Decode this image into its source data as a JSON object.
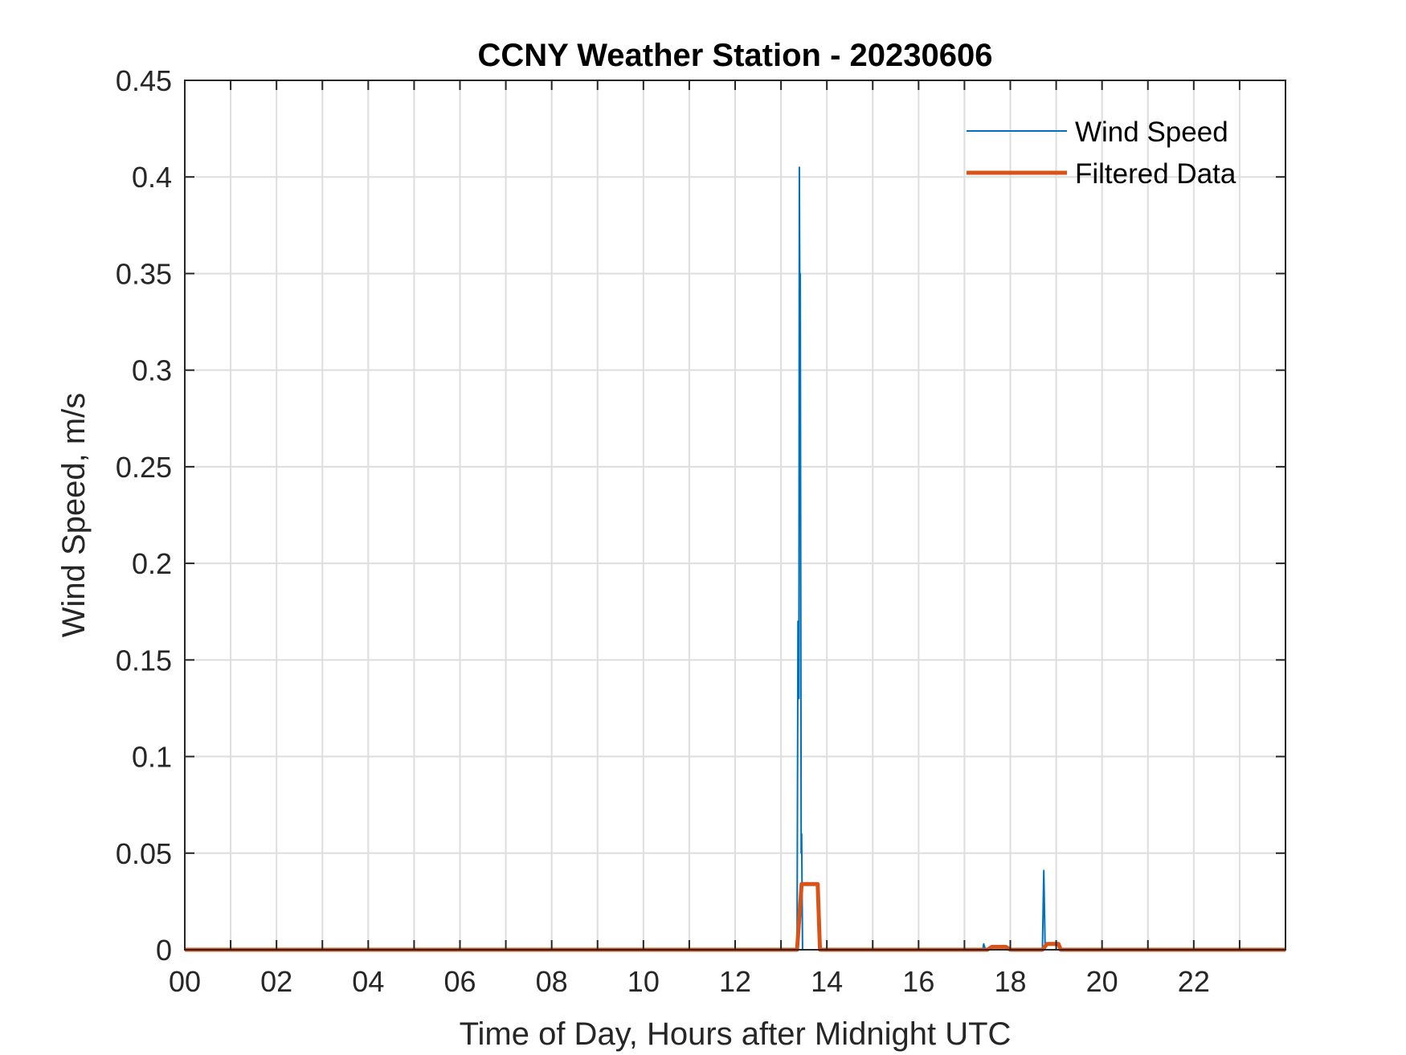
{
  "chart_data": {
    "type": "line",
    "title": "CCNY Weather Station - 20230606",
    "xlabel": "Time of Day, Hours after Midnight UTC",
    "ylabel": "Wind Speed, m/s",
    "xlim": [
      0,
      24
    ],
    "ylim": [
      0,
      0.45
    ],
    "x_ticks": [
      0,
      2,
      4,
      6,
      8,
      10,
      12,
      14,
      16,
      18,
      20,
      22
    ],
    "x_tick_labels": [
      "00",
      "02",
      "04",
      "06",
      "08",
      "10",
      "12",
      "14",
      "16",
      "18",
      "20",
      "22"
    ],
    "x_grid": [
      0,
      1,
      2,
      3,
      4,
      5,
      6,
      7,
      8,
      9,
      10,
      11,
      12,
      13,
      14,
      15,
      16,
      17,
      18,
      19,
      20,
      21,
      22,
      23
    ],
    "y_ticks": [
      0,
      0.05,
      0.1,
      0.15,
      0.2,
      0.25,
      0.3,
      0.35,
      0.4,
      0.45
    ],
    "y_tick_labels": [
      "0",
      "0.05",
      "0.1",
      "0.15",
      "0.2",
      "0.25",
      "0.3",
      "0.35",
      "0.4",
      "0.45"
    ],
    "grid": true,
    "legend_position": "top-right",
    "series": [
      {
        "name": "Wind Speed",
        "color": "#0072BD",
        "line_width": 2,
        "points": [
          [
            0,
            0
          ],
          [
            13.35,
            0
          ],
          [
            13.37,
            0.17
          ],
          [
            13.39,
            0.13
          ],
          [
            13.4,
            0.405
          ],
          [
            13.41,
            0.34
          ],
          [
            13.42,
            0.35
          ],
          [
            13.43,
            0.2
          ],
          [
            13.44,
            0.05
          ],
          [
            13.45,
            0.06
          ],
          [
            13.47,
            0
          ],
          [
            17.4,
            0
          ],
          [
            17.42,
            0.003
          ],
          [
            17.46,
            0
          ],
          [
            18.7,
            0
          ],
          [
            18.73,
            0.041
          ],
          [
            18.76,
            0
          ],
          [
            24,
            0
          ]
        ]
      },
      {
        "name": "Filtered Data",
        "color": "#D95319",
        "line_width": 5,
        "points": [
          [
            0,
            0
          ],
          [
            13.35,
            0
          ],
          [
            13.45,
            0.034
          ],
          [
            13.8,
            0.034
          ],
          [
            13.85,
            0
          ],
          [
            17.5,
            0
          ],
          [
            17.6,
            0.0015
          ],
          [
            17.9,
            0.0015
          ],
          [
            18.0,
            0
          ],
          [
            18.7,
            0
          ],
          [
            18.8,
            0.003
          ],
          [
            19.05,
            0.003
          ],
          [
            19.1,
            0
          ],
          [
            24,
            0
          ]
        ]
      }
    ]
  }
}
